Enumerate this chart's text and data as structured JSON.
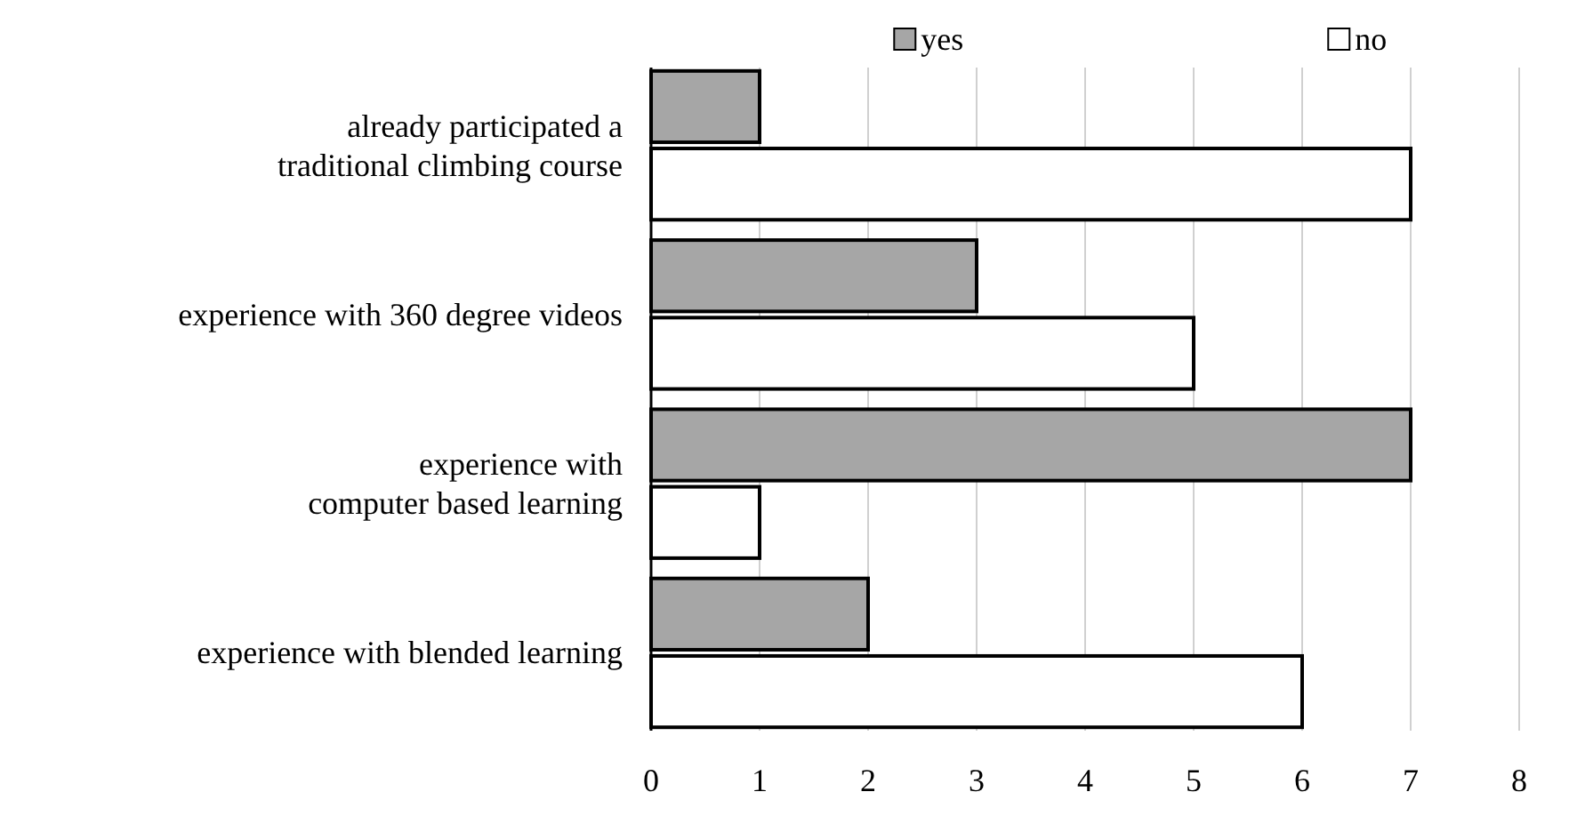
{
  "chart_data": {
    "type": "bar",
    "orientation": "horizontal",
    "categories": [
      "already participated a\ntraditional climbing course",
      "experience with 360 degree videos",
      "experience with\ncomputer based learning",
      "experience with blended learning"
    ],
    "series": [
      {
        "name": "yes",
        "color": "#a6a6a6",
        "values": [
          1,
          3,
          7,
          2
        ]
      },
      {
        "name": "no",
        "color": "#ffffff",
        "values": [
          7,
          5,
          1,
          6
        ]
      }
    ],
    "xlim": [
      0,
      8
    ],
    "xticks": [
      0,
      1,
      2,
      3,
      4,
      5,
      6,
      7,
      8
    ],
    "grid": "x",
    "legend": "top"
  }
}
